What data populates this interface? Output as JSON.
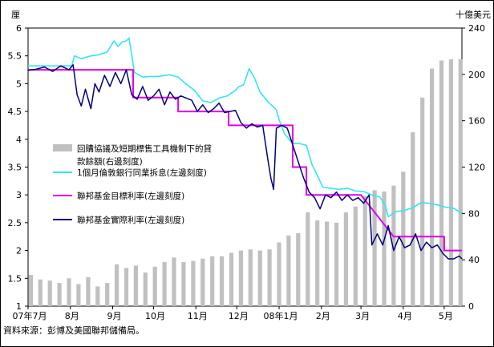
{
  "chart_data": {
    "type": "bar+line",
    "left_unit": "厘",
    "right_unit": "十億美元",
    "left_axis": {
      "min": 1,
      "max": 6,
      "ticks": [
        "1",
        "1.5",
        "2",
        "2.5",
        "3",
        "3.5",
        "4",
        "4.5",
        "5",
        "5.5",
        "6"
      ]
    },
    "right_axis": {
      "min": 0,
      "max": 240,
      "ticks": [
        "0",
        "40",
        "80",
        "120",
        "160",
        "200",
        "240"
      ]
    },
    "x_labels": [
      {
        "label": "07年7月",
        "day": 0
      },
      {
        "label": "8月",
        "day": 31
      },
      {
        "label": "9月",
        "day": 62
      },
      {
        "label": "10月",
        "day": 92
      },
      {
        "label": "11月",
        "day": 123
      },
      {
        "label": "12月",
        "day": 153
      },
      {
        "label": "08年1月",
        "day": 184
      },
      {
        "label": "2月",
        "day": 215
      },
      {
        "label": "3月",
        "day": 244
      },
      {
        "label": "4月",
        "day": 275
      },
      {
        "label": "5月",
        "day": 305
      }
    ],
    "x_range": [
      0,
      318
    ],
    "legend": [
      {
        "label": "回購協議及短期標售工具機制下的貸款餘額(右邊刻度)",
        "type": "bar",
        "color": "#c0c0c0"
      },
      {
        "label": "1個月倫敦銀行同業拆息(左邊刻度)",
        "type": "line",
        "color": "#33e6f0"
      },
      {
        "label": "聯邦基金目標利率(左邊刻度)",
        "type": "line",
        "color": "#e600e6"
      },
      {
        "label": "聯邦基金實際利率(左邊刻度)",
        "type": "line",
        "color": "#000080"
      }
    ],
    "bars": {
      "days": [
        2,
        9,
        16,
        23,
        30,
        37,
        44,
        51,
        58,
        65,
        72,
        79,
        86,
        93,
        100,
        107,
        114,
        121,
        128,
        135,
        142,
        149,
        156,
        163,
        170,
        177,
        184,
        191,
        198,
        205,
        212,
        219,
        226,
        233,
        240,
        247,
        254,
        261,
        268,
        275,
        282,
        289,
        296,
        303,
        310,
        317
      ],
      "values": [
        27,
        23,
        22,
        20,
        24,
        19,
        25,
        17,
        20,
        36,
        33,
        35,
        29,
        34,
        38,
        42,
        38,
        39,
        41,
        43,
        43,
        46,
        48,
        49,
        48,
        49,
        55,
        61,
        63,
        81,
        74,
        73,
        72,
        81,
        86,
        95,
        100,
        99,
        104,
        116,
        150,
        180,
        205,
        212,
        213,
        213
      ]
    },
    "libor": {
      "days": [
        0,
        12,
        25,
        32,
        34,
        39,
        46,
        52,
        58,
        63,
        66,
        69,
        72,
        74,
        78,
        84,
        90,
        95,
        104,
        110,
        116,
        122,
        128,
        134,
        140,
        146,
        152,
        154,
        158,
        162,
        166,
        170,
        176,
        182,
        184,
        188,
        194,
        198,
        204,
        208,
        212,
        216,
        222,
        228,
        234,
        240,
        246,
        252,
        258,
        262,
        264,
        270,
        276,
        282,
        288,
        294,
        300,
        306,
        312,
        318
      ],
      "values": [
        5.32,
        5.32,
        5.32,
        5.32,
        5.5,
        5.45,
        5.5,
        5.52,
        5.57,
        5.77,
        5.67,
        5.75,
        5.77,
        5.82,
        5.2,
        5.12,
        5.13,
        5.13,
        5.16,
        5.12,
        4.99,
        4.88,
        4.69,
        4.66,
        4.74,
        4.78,
        4.88,
        4.94,
        4.98,
        5.27,
        5.1,
        4.85,
        4.67,
        4.53,
        4.35,
        4.1,
        3.92,
        3.93,
        3.89,
        3.55,
        3.35,
        3.14,
        3.12,
        3.1,
        3.12,
        3.07,
        3.06,
        3.0,
        2.96,
        2.8,
        2.61,
        2.7,
        2.72,
        2.77,
        2.86,
        2.85,
        2.82,
        2.78,
        2.76,
        2.67
      ]
    },
    "target": {
      "days": [
        0,
        47,
        47,
        77,
        77,
        110,
        110,
        147,
        147,
        182,
        182,
        194,
        194,
        204,
        204,
        244,
        244,
        268,
        268,
        305,
        305,
        318
      ],
      "values": [
        5.25,
        5.25,
        5.25,
        5.25,
        4.75,
        4.75,
        4.5,
        4.5,
        4.25,
        4.25,
        4.25,
        4.25,
        3.5,
        3.5,
        3.0,
        3.0,
        3.0,
        2.25,
        2.25,
        2.25,
        2.0,
        2.0
      ]
    },
    "effective": {
      "days": [
        0,
        6,
        12,
        18,
        24,
        30,
        33,
        36,
        39,
        42,
        46,
        49,
        52,
        56,
        60,
        64,
        68,
        72,
        76,
        80,
        84,
        88,
        92,
        96,
        100,
        104,
        108,
        112,
        116,
        120,
        124,
        128,
        132,
        136,
        140,
        144,
        148,
        152,
        156,
        160,
        164,
        168,
        172,
        176,
        178,
        180,
        182,
        186,
        190,
        194,
        198,
        202,
        206,
        210,
        214,
        218,
        222,
        226,
        230,
        234,
        238,
        242,
        246,
        250,
        252,
        256,
        260,
        264,
        268,
        272,
        276,
        280,
        284,
        288,
        292,
        296,
        300,
        304,
        308,
        312,
        316,
        318
      ],
      "values": [
        5.24,
        5.26,
        5.3,
        5.22,
        5.32,
        5.25,
        5.34,
        4.8,
        4.6,
        4.9,
        4.55,
        5.0,
        4.85,
        5.15,
        4.95,
        5.2,
        5.0,
        5.25,
        4.8,
        4.72,
        4.95,
        4.7,
        4.78,
        4.9,
        4.62,
        4.85,
        4.72,
        4.78,
        4.74,
        4.7,
        4.5,
        4.62,
        4.48,
        4.55,
        4.65,
        4.48,
        4.5,
        4.52,
        4.3,
        4.2,
        4.28,
        4.22,
        4.25,
        3.6,
        3.3,
        3.1,
        4.2,
        4.25,
        4.2,
        3.9,
        3.6,
        3.3,
        3.05,
        2.95,
        2.75,
        3.0,
        2.95,
        3.05,
        2.9,
        3.0,
        2.9,
        2.95,
        2.85,
        3.0,
        2.1,
        2.3,
        2.1,
        2.45,
        2.0,
        2.25,
        2.05,
        2.1,
        2.3,
        2.0,
        2.15,
        2.05,
        2.1,
        1.95,
        1.85,
        1.85,
        1.9,
        1.85
      ]
    }
  },
  "source": "資料來源：彭博及美國聯邦儲備局。"
}
